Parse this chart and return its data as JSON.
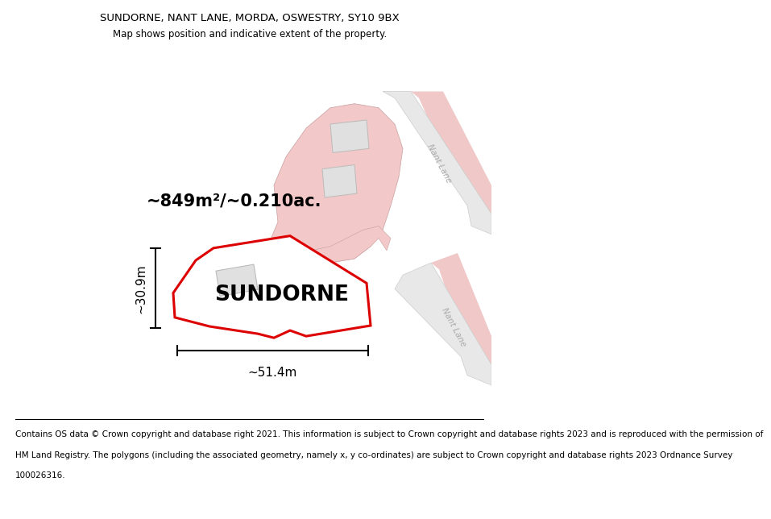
{
  "title_line1": "SUNDORNE, NANT LANE, MORDA, OSWESTRY, SY10 9BX",
  "title_line2": "Map shows position and indicative extent of the property.",
  "property_label": "SUNDORNE",
  "area_label": "~849m²/~0.210ac.",
  "width_label": "~51.4m",
  "height_label": "~30.9m",
  "footer_lines": [
    "Contains OS data © Crown copyright and database right 2021. This information is subject to Crown copyright and database rights 2023 and is reproduced with the permission of",
    "HM Land Registry. The polygons (including the associated geometry, namely x, y co-ordinates) are subject to Crown copyright and database rights 2023 Ordnance Survey",
    "100026316."
  ],
  "bg_color": "#ffffff",
  "plot_fill": "#ffffff",
  "plot_edge": "#dd0000",
  "neighbor_fill": "#f2c8c8",
  "road_fill": "#e8e8e8",
  "road_edge": "#cccccc",
  "building_fill": "#e0e0e0",
  "building_edge": "#bbbbbb",
  "road_label_color": "#aaaaaa",
  "dim_color": "#000000",
  "title_fontsize": 9.5,
  "subtitle_fontsize": 8.5,
  "label_fontsize": 19,
  "area_fontsize": 15,
  "dim_fontsize": 11,
  "footer_fontsize": 7.5
}
